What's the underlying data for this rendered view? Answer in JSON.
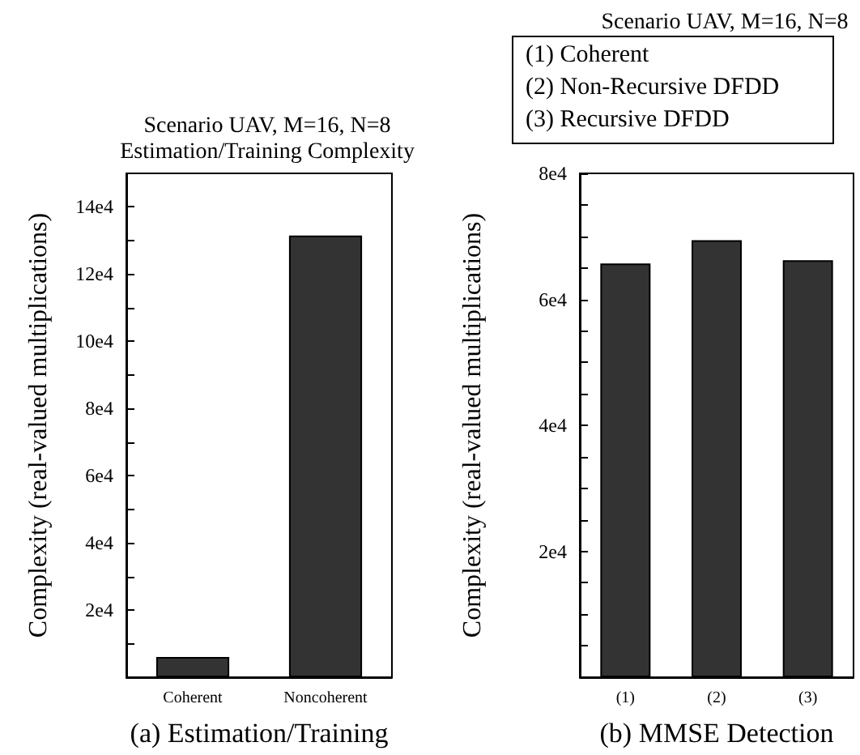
{
  "chart_data": [
    {
      "type": "bar",
      "title": "Scenario UAV, M=16, N=8",
      "subtitle": "Estimation/Training Complexity",
      "xlabel": "(a) Estimation/Training",
      "ylabel": "Complexity (real-valued multiplications)",
      "categories": [
        "Coherent",
        "Noncoherent"
      ],
      "values": [
        6000,
        131500
      ],
      "color": "#333333",
      "ylim": [
        0,
        150000
      ],
      "yticks": [
        {
          "value": 10000,
          "label": null
        },
        {
          "value": 20000,
          "label": "2e4"
        },
        {
          "value": 30000,
          "label": null
        },
        {
          "value": 40000,
          "label": "4e4"
        },
        {
          "value": 50000,
          "label": null
        },
        {
          "value": 60000,
          "label": "6e4"
        },
        {
          "value": 70000,
          "label": null
        },
        {
          "value": 80000,
          "label": "8e4"
        },
        {
          "value": 90000,
          "label": null
        },
        {
          "value": 100000,
          "label": "10e4"
        },
        {
          "value": 110000,
          "label": null
        },
        {
          "value": 120000,
          "label": "12e4"
        },
        {
          "value": 130000,
          "label": null
        },
        {
          "value": 140000,
          "label": "14e4"
        }
      ],
      "grid": false
    },
    {
      "type": "bar",
      "title": "Scenario UAV, M=16, N=8",
      "annotations": [
        "(1) Coherent",
        "(2) Non-Recursive DFDD",
        "(3) Recursive DFDD"
      ],
      "xlabel": "(b) MMSE Detection",
      "ylabel": "Complexity (real-valued multiplications)",
      "categories": [
        "(1)",
        "(2)",
        "(3)"
      ],
      "values": [
        65700,
        69400,
        66200
      ],
      "color": "#333333",
      "ylim": [
        0,
        80000
      ],
      "yticks": [
        {
          "value": 5000,
          "label": null
        },
        {
          "value": 10000,
          "label": null
        },
        {
          "value": 15000,
          "label": null
        },
        {
          "value": 20000,
          "label": "2e4"
        },
        {
          "value": 25000,
          "label": null
        },
        {
          "value": 30000,
          "label": null
        },
        {
          "value": 35000,
          "label": null
        },
        {
          "value": 40000,
          "label": "4e4"
        },
        {
          "value": 45000,
          "label": null
        },
        {
          "value": 50000,
          "label": null
        },
        {
          "value": 55000,
          "label": null
        },
        {
          "value": 60000,
          "label": "6e4"
        },
        {
          "value": 65000,
          "label": null
        },
        {
          "value": 70000,
          "label": null
        },
        {
          "value": 75000,
          "label": null
        },
        {
          "value": 80000,
          "label": "8e4"
        }
      ],
      "grid": false
    }
  ]
}
